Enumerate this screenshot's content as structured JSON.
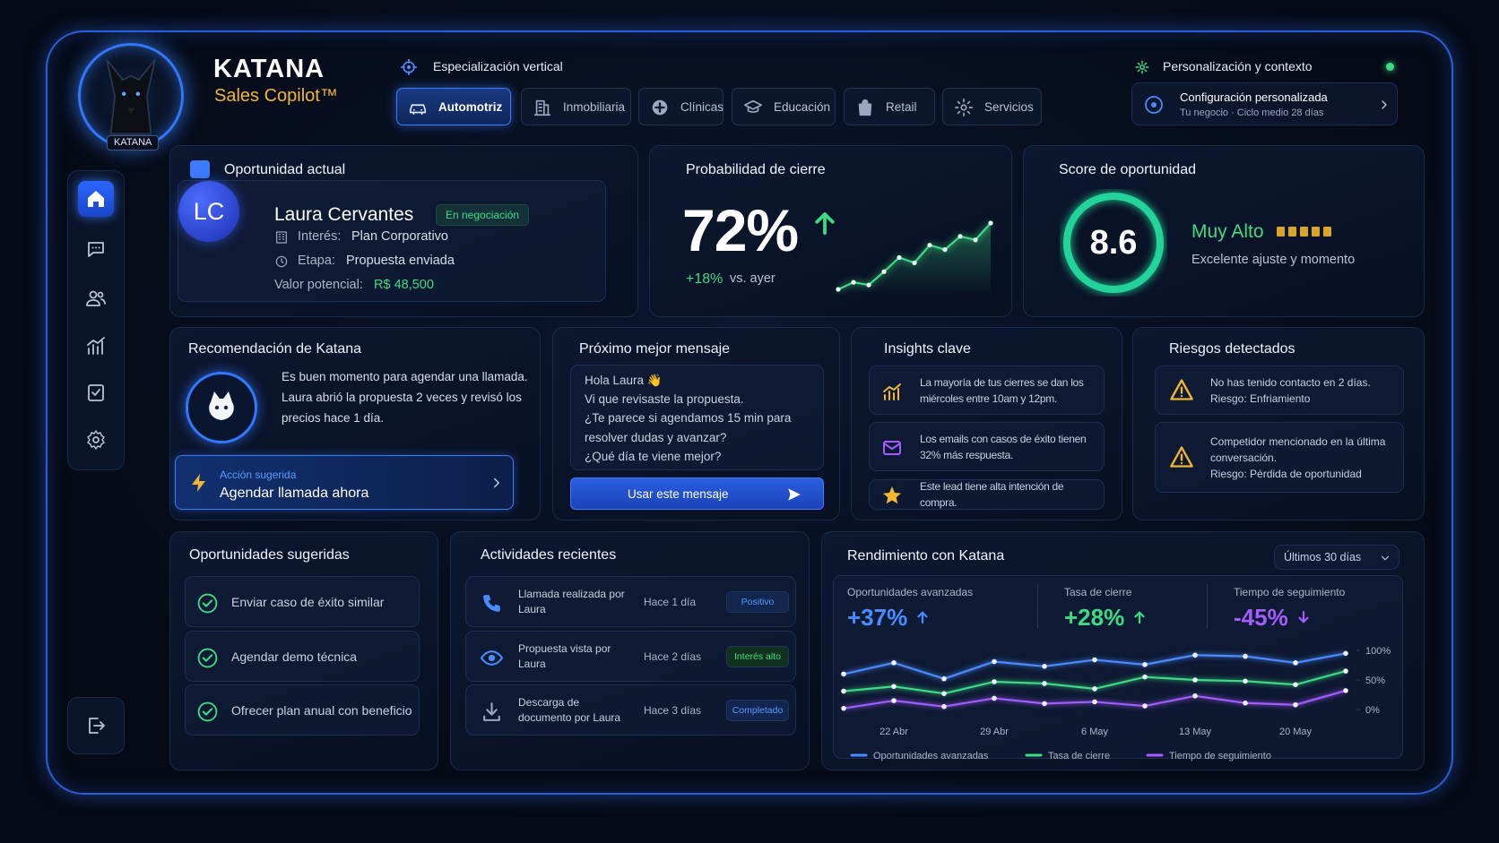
{
  "brand": {
    "name": "KATANA",
    "product": "Sales Copilot™",
    "badge": "KATANA"
  },
  "vertical": {
    "title": "Especialización vertical",
    "tabs": [
      "Automotriz",
      "Inmobiliaria",
      "Clínicas",
      "Educación",
      "Retail",
      "Servicios"
    ],
    "active": 0
  },
  "personalization": {
    "title": "Personalización y contexto",
    "config_title": "Configuración personalizada",
    "config_subtitle": "Tu negocio · Ciclo medio 28 días"
  },
  "opportunity": {
    "title": "Oportunidad actual",
    "initials": "LC",
    "name": "Laura Cervantes",
    "status": "En negociación",
    "fields": [
      {
        "label": "Interés:",
        "value": "Plan Corporativo"
      },
      {
        "label": "Etapa:",
        "value": "Propuesta enviada"
      },
      {
        "label": "Valor potencial:",
        "value": "R$ 48,500"
      }
    ]
  },
  "probability": {
    "title": "Probabilidad de cierre",
    "value": "72%",
    "change": "+18%",
    "change_note": "vs. ayer",
    "trend": [
      10,
      18,
      15,
      30,
      46,
      40,
      60,
      55,
      70,
      66,
      85
    ]
  },
  "score": {
    "title": "Score de oportunidad",
    "value": "8.6",
    "level": "Muy Alto",
    "note": "Excelente ajuste y momento"
  },
  "recommendation": {
    "title": "Recomendación de Katana",
    "text": "Es buen momento para agendar una llamada. Laura abrió la propuesta 2 veces y revisó los precios hace 1 día.",
    "action_label": "Acción sugerida",
    "action": "Agendar llamada ahora"
  },
  "next_message": {
    "title": "Próximo mejor mensaje",
    "lines": [
      "Hola Laura 👋",
      "Vi que revisaste la propuesta.",
      "¿Te parece si agendamos 15 min para",
      "resolver dudas y avanzar?",
      "¿Qué día te viene mejor?"
    ],
    "button": "Usar este mensaje"
  },
  "insights": {
    "title": "Insights clave",
    "items": [
      "La mayoría de tus cierres se dan los miércoles entre 10am y 12pm.",
      "Los emails con casos de éxito tienen 32% más respuesta.",
      "Este lead tiene alta intención de compra."
    ]
  },
  "risks": {
    "title": "Riesgos detectados",
    "items": [
      {
        "text": "No has tenido contacto en 2 días.",
        "risk": "Riesgo: Enfriamiento"
      },
      {
        "text": "Competidor mencionado en la última conversación.",
        "risk": "Riesgo: Pérdida de oportunidad"
      }
    ]
  },
  "suggested": {
    "title": "Oportunidades sugeridas",
    "items": [
      "Enviar caso de éxito similar",
      "Agendar demo técnica",
      "Ofrecer plan anual con beneficio"
    ]
  },
  "activities": {
    "title": "Actividades recientes",
    "items": [
      {
        "text": "Llamada realizada por Laura",
        "time": "Hace 1 día",
        "tag": "Positivo"
      },
      {
        "text": "Propuesta vista por Laura",
        "time": "Hace 2 días",
        "tag": "Interés alto"
      },
      {
        "text": "Descarga de documento por Laura",
        "time": "Hace 3 días",
        "tag": "Completado"
      }
    ]
  },
  "performance": {
    "title": "Rendimiento con Katana",
    "period": "Últimos 30 días",
    "kpis": [
      {
        "label": "Oportunidades avanzadas",
        "value": "+37%"
      },
      {
        "label": "Tasa de cierre",
        "value": "+28%"
      },
      {
        "label": "Tiempo de seguimiento",
        "value": "-45%"
      }
    ],
    "chart_data": {
      "type": "line",
      "categories": [
        null,
        "22 Abr",
        null,
        "29 Abr",
        null,
        "6 May",
        null,
        "13 May",
        null,
        "20 May",
        null
      ],
      "series": [
        {
          "name": "Oportunidades avanzadas",
          "color": "#4a8cff",
          "values": [
            60,
            79,
            52,
            81,
            73,
            84,
            76,
            92,
            90,
            79,
            95
          ]
        },
        {
          "name": "Tasa de cierre",
          "color": "#3ddc84",
          "values": [
            31,
            39,
            27,
            47,
            44,
            35,
            55,
            50,
            48,
            42,
            65
          ]
        },
        {
          "name": "Tiempo de seguimiento",
          "color": "#a45cff",
          "values": [
            2,
            15,
            5,
            19,
            10,
            13,
            6,
            23,
            11,
            8,
            32
          ]
        }
      ],
      "ylim": [
        0,
        100
      ],
      "yticks": [
        {
          "value": 0,
          "label": "0%"
        },
        {
          "value": 50,
          "label": "50%"
        },
        {
          "value": 100,
          "label": "100%"
        }
      ]
    }
  }
}
